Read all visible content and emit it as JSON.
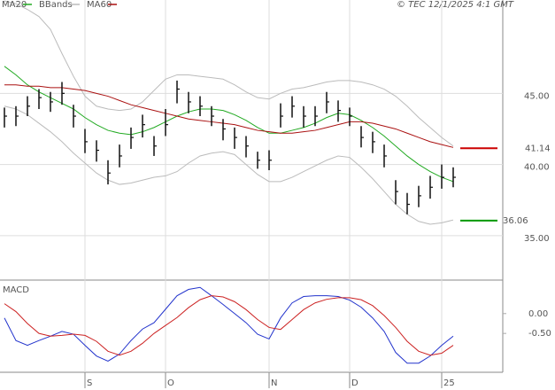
{
  "timestamp": "© TEC 12/1/2025 4:1 GMT",
  "chart_data": [
    {
      "type": "ohlc",
      "categories": [
        null,
        null,
        null,
        null,
        null,
        null,
        null,
        "S",
        null,
        null,
        null,
        null,
        null,
        null,
        "O",
        null,
        null,
        null,
        null,
        null,
        null,
        null,
        null,
        "N",
        null,
        null,
        null,
        null,
        null,
        null,
        "D",
        null,
        null,
        null,
        null,
        null,
        null,
        null,
        "25",
        null
      ],
      "ylim": [
        31.875,
        51.5625
      ],
      "yticks": [
        {
          "value": 35,
          "label": "35.00"
        },
        {
          "value": 40,
          "label": "40.00"
        },
        {
          "value": 45,
          "label": "45.00"
        }
      ],
      "grid": true,
      "legend": "top-left",
      "price": {
        "color": "#111111",
        "high": [
          44.0,
          44.1,
          44.8,
          45.3,
          45.1,
          45.8,
          44.2,
          42.5,
          41.7,
          40.3,
          41.4,
          42.6,
          43.5,
          42.0,
          43.9,
          45.9,
          45.1,
          44.8,
          44.1,
          43.2,
          42.6,
          42.0,
          40.9,
          41.0,
          44.3,
          44.8,
          44.1,
          44.1,
          45.1,
          44.5,
          44.0,
          42.7,
          42.3,
          41.4,
          38.9,
          38.0,
          38.5,
          39.2,
          40.0,
          39.8
        ],
        "low": [
          42.6,
          42.7,
          43.4,
          43.9,
          43.7,
          44.2,
          42.6,
          40.8,
          40.2,
          38.6,
          39.8,
          41.1,
          41.9,
          40.6,
          42.0,
          44.3,
          43.6,
          43.4,
          42.7,
          41.7,
          41.1,
          40.5,
          39.7,
          39.6,
          42.6,
          43.3,
          42.6,
          42.7,
          43.6,
          43.0,
          42.7,
          41.2,
          40.8,
          39.8,
          37.2,
          36.5,
          37.0,
          37.6,
          38.3,
          38.4
        ],
        "close": [
          43.4,
          43.4,
          44.1,
          44.7,
          44.4,
          45.0,
          43.4,
          41.6,
          41.0,
          39.4,
          40.6,
          41.9,
          42.8,
          41.3,
          42.8,
          45.3,
          44.4,
          44.1,
          43.4,
          42.5,
          41.9,
          41.3,
          40.3,
          40.3,
          43.4,
          44.1,
          43.4,
          43.4,
          44.4,
          43.8,
          43.4,
          41.9,
          41.6,
          40.6,
          38.1,
          37.2,
          37.8,
          38.4,
          39.1,
          39.1
        ]
      },
      "series": [
        {
          "name": "MA20",
          "color": "#22aa22",
          "values": [
            46.9,
            46.3,
            45.6,
            45.1,
            44.7,
            44.3,
            43.9,
            43.3,
            42.8,
            42.4,
            42.2,
            42.1,
            42.3,
            42.6,
            43.0,
            43.4,
            43.7,
            43.9,
            43.9,
            43.8,
            43.5,
            43.1,
            42.6,
            42.2,
            42.2,
            42.4,
            42.6,
            42.9,
            43.3,
            43.6,
            43.5,
            43.1,
            42.6,
            42.0,
            41.3,
            40.6,
            40.0,
            39.5,
            39.1,
            38.8
          ]
        },
        {
          "name": "BBands",
          "color": "#bbbbbb",
          "values": [
            51.5,
            51.3,
            50.9,
            50.4,
            49.5,
            47.8,
            46.2,
            44.8,
            44.1,
            43.9,
            43.8,
            43.9,
            44.4,
            45.2,
            46.0,
            46.3,
            46.3,
            46.2,
            46.1,
            46.0,
            45.6,
            45.1,
            44.7,
            44.6,
            45.0,
            45.3,
            45.4,
            45.6,
            45.8,
            45.9,
            45.9,
            45.8,
            45.6,
            45.3,
            44.8,
            44.1,
            43.3,
            42.6,
            41.9,
            41.3
          ],
          "lower": [
            44.1,
            43.9,
            43.5,
            42.9,
            42.3,
            41.6,
            40.8,
            40.1,
            39.4,
            38.9,
            38.6,
            38.7,
            38.9,
            39.1,
            39.2,
            39.5,
            40.1,
            40.6,
            40.8,
            40.9,
            40.7,
            40.0,
            39.3,
            38.8,
            38.8,
            39.1,
            39.5,
            39.9,
            40.3,
            40.6,
            40.5,
            39.8,
            39.0,
            38.1,
            37.2,
            36.5,
            36.0,
            35.8,
            35.9,
            36.1
          ]
        },
        {
          "name": "MA60",
          "color": "#aa1111",
          "values": [
            45.6,
            45.6,
            45.5,
            45.5,
            45.4,
            45.4,
            45.3,
            45.2,
            45.0,
            44.8,
            44.5,
            44.2,
            44.0,
            43.8,
            43.6,
            43.4,
            43.2,
            43.1,
            43.0,
            42.9,
            42.8,
            42.6,
            42.4,
            42.3,
            42.2,
            42.2,
            42.3,
            42.4,
            42.6,
            42.8,
            43.0,
            43.0,
            42.9,
            42.7,
            42.5,
            42.2,
            41.9,
            41.6,
            41.4,
            41.2
          ]
        }
      ],
      "annotations": [
        {
          "text": "41.14",
          "value": 41.14,
          "color": "#cc0000"
        },
        {
          "text": "36.06",
          "value": 36.06,
          "color": "#009900"
        }
      ]
    },
    {
      "type": "line",
      "title": "MACD",
      "ylim": [
        -1.48,
        0.8
      ],
      "yticks": [
        {
          "value": 0,
          "label": "0.00"
        },
        {
          "value": -0.5,
          "label": "-0.50"
        }
      ],
      "series": [
        {
          "color": "#2233cc",
          "values": [
            -0.11,
            -0.68,
            -0.8,
            -0.68,
            -0.57,
            -0.45,
            -0.52,
            -0.8,
            -1.07,
            -1.2,
            -1.02,
            -0.68,
            -0.39,
            -0.23,
            0.11,
            0.45,
            0.61,
            0.66,
            0.45,
            0.23,
            0.0,
            -0.23,
            -0.52,
            -0.64,
            -0.11,
            0.27,
            0.43,
            0.45,
            0.45,
            0.43,
            0.34,
            0.16,
            -0.11,
            -0.45,
            -0.98,
            -1.25,
            -1.25,
            -1.07,
            -0.8,
            -0.57
          ]
        },
        {
          "color": "#cc2222",
          "values": [
            0.25,
            0.05,
            -0.25,
            -0.5,
            -0.57,
            -0.55,
            -0.52,
            -0.55,
            -0.7,
            -0.95,
            -1.05,
            -0.95,
            -0.75,
            -0.5,
            -0.3,
            -0.1,
            0.15,
            0.35,
            0.45,
            0.42,
            0.3,
            0.1,
            -0.15,
            -0.35,
            -0.4,
            -0.15,
            0.1,
            0.27,
            0.36,
            0.4,
            0.4,
            0.35,
            0.2,
            -0.05,
            -0.35,
            -0.7,
            -0.95,
            -1.05,
            -1.0,
            -0.8
          ]
        }
      ]
    }
  ]
}
